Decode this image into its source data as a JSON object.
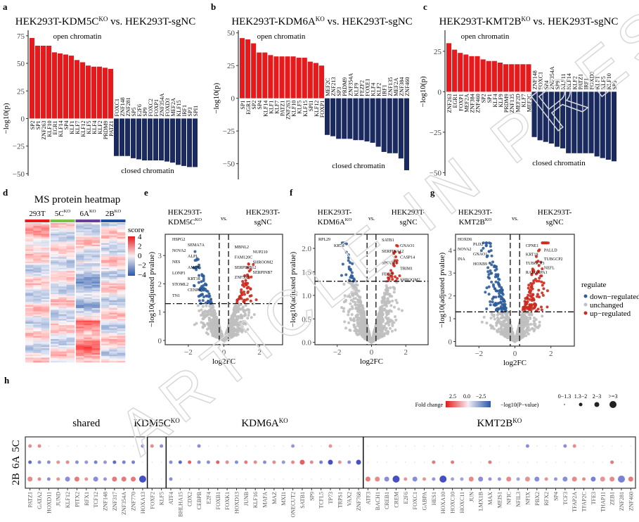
{
  "panel_letters": [
    "a",
    "b",
    "c",
    "d",
    "e",
    "f",
    "g",
    "h"
  ],
  "watermark": "ARTICLE IN PRESS",
  "colors": {
    "open": "#e41a1c",
    "closed": "#1b2a5e",
    "down": "#2f5d9a",
    "up": "#cc2a1e",
    "unchanged": "#bfbfbf",
    "heat_low": "#2a56a8",
    "heat_high": "#e41a1c"
  },
  "chart_data": [
    {
      "id": "a",
      "type": "bar",
      "title": "HEK293T-KDM5C",
      "title_sup": "KO",
      "title_rest": " vs. HEK293T-sgNC",
      "ylabel": "−log10(p)",
      "open_label": "open chromatin",
      "closed_label": "closed chromatin",
      "ylim": [
        -52,
        80
      ],
      "yticks": [
        -50,
        -25,
        0,
        25,
        50,
        75
      ],
      "open": {
        "categories": [
          "SP2",
          "SP1",
          "ZNF263",
          "KLF10",
          "EGR1",
          "KLF14",
          "SP4",
          "KLF1",
          "KLF7",
          "KLF12",
          "KLF5",
          "KLF4",
          "KLF2",
          "PRDM9",
          "PATZ1"
        ],
        "values": [
          73,
          66,
          66,
          66,
          60,
          59,
          58,
          57,
          53,
          51,
          48,
          47,
          47,
          46,
          45
        ]
      },
      "closed": {
        "categories": [
          "FOXC1",
          "ZNF148",
          "ZNF281",
          "SP5",
          "E2F6",
          "SP9",
          "FOXC2",
          "FOXP1",
          "ZNF354A",
          "FOXD3",
          "MEF2A",
          "KLF15",
          "IRF1",
          "SP3",
          "SPI1"
        ],
        "values": [
          -34,
          -34,
          -34,
          -36,
          -37,
          -38,
          -38,
          -38,
          -38,
          -39,
          -40,
          -42,
          -43,
          -44,
          -44
        ]
      }
    },
    {
      "id": "b",
      "type": "bar",
      "title": "HEK293T-KDM6A",
      "title_sup": "KO",
      "title_rest": " vs. HEK293T-sgNC",
      "ylabel": "−log10(p)",
      "open_label": "open chromatin",
      "closed_label": "closed chromatin",
      "ylim": [
        -62,
        52
      ],
      "yticks": [
        -50,
        -25,
        0,
        25,
        50
      ],
      "open": {
        "categories": [
          "SP1",
          "EGR1",
          "SP2",
          "SP4",
          "KLF14",
          "KLF1",
          "KLF7",
          "PATZ1",
          "ZNF263",
          "KLF10",
          "KLF5",
          "KLF15",
          "SPI1",
          "KLF12",
          "FOXP1"
        ],
        "values": [
          46,
          45,
          42,
          35,
          35,
          33,
          32,
          32,
          32,
          32,
          31,
          31,
          28,
          27,
          25
        ]
      },
      "closed": {
        "categories": [
          "MEF2C",
          "ZNF213",
          "SP3",
          "PRDM9",
          "ZNF354A",
          "KLF9",
          "FEZF2",
          "FOXE1",
          "KLF4",
          "KLF2",
          "IRF1",
          "ZNF135",
          "MEF2A",
          "ZNF384",
          "ZNF460"
        ],
        "values": [
          -28,
          -29,
          -31,
          -31,
          -31,
          -32,
          -32,
          -33,
          -34,
          -37,
          -41,
          -42,
          -42,
          -46,
          -55
        ]
      }
    },
    {
      "id": "c",
      "type": "bar",
      "title": "HEK293T-KMT2B",
      "title_sup": "KO",
      "title_rest": " vs. HEK293T-sgNC",
      "ylabel": "−log10(p)",
      "open_label": "open chromatin",
      "closed_label": "closed chromatin",
      "ylim": [
        -52,
        38
      ],
      "yticks": [
        -50,
        -25,
        0,
        25
      ],
      "open": {
        "categories": [
          "ZNF263",
          "EGR1",
          "FOXP1",
          "MEF2A",
          "ZNF384",
          "ZNF460",
          "SP2",
          "SP1",
          "KLF4",
          "KLF9",
          "PRDM9",
          "ZNF135",
          "MEF2D",
          "KLF7",
          "MEF2C"
        ],
        "values": [
          30,
          26,
          24,
          23,
          22,
          22,
          20,
          19,
          19,
          18,
          17,
          17,
          17,
          17,
          17
        ]
      },
      "closed": {
        "categories": [
          "ZNF148",
          "FOXC1",
          "SP4",
          "ZNF354A",
          "SP9",
          "KLF11",
          "KLF14",
          "KLF2",
          "PATZ1",
          "IRF1",
          "FOXD3",
          "KLF1",
          "KLF5",
          "KLF10",
          "SP3"
        ],
        "values": [
          -28,
          -30,
          -31,
          -32,
          -34,
          -35,
          -38,
          -38,
          -38,
          -38,
          -38,
          -40,
          -41,
          -42,
          -43
        ]
      }
    },
    {
      "id": "d",
      "type": "heatmap",
      "title": "MS protein heatmap",
      "groups": [
        {
          "label": "293T",
          "sup": "",
          "color": "#e41a1c"
        },
        {
          "label": "5C",
          "sup": "KO",
          "color": "#7ac143"
        },
        {
          "label": "6A",
          "sup": "KO",
          "color": "#6a3d9a"
        },
        {
          "label": "2B",
          "sup": "KO",
          "color": "#1f4e9c"
        }
      ],
      "legend_title": "score",
      "legend_ticks": [
        4,
        2,
        0,
        -2,
        -4
      ],
      "value_range": [
        -4,
        4
      ]
    },
    {
      "id": "e",
      "type": "scatter",
      "title_left": "HEK293T-",
      "title_left2": "KDM5C",
      "title_left_sup": "KO",
      "title_vs": "vs.",
      "title_right": "HEK293T-",
      "title_right2": "sgNC",
      "xlabel": "log2FC",
      "ylabel": "−log10(adjusted pvalue)",
      "xlim": [
        -3.3,
        3.3
      ],
      "ylim": [
        -0.15,
        3.75
      ],
      "xticks": [
        -2,
        0,
        2
      ],
      "yticks": [
        0,
        1,
        2,
        3
      ],
      "fc_cut": 0.26,
      "p_cut": 1.3,
      "labels_down": [
        "HSPG2",
        "SEMA7A",
        "NOVA2",
        "ALPL",
        "NES",
        "AMOT",
        "LONP1",
        "KRT18",
        "STOML2",
        "CENPV",
        "TN1"
      ],
      "labels_up": [
        "MBNL2",
        "NUP210",
        "FAM120C",
        "SHROOM2",
        "SERPINB12",
        "SERPINB7",
        "ZNF502"
      ]
    },
    {
      "id": "f",
      "type": "scatter",
      "title_left": "HEK293T-",
      "title_left2": "KDM6A",
      "title_left_sup": "KO",
      "title_vs": "vs.",
      "title_right": "HEK293T-",
      "title_right2": "sgNC",
      "xlabel": "log2FC",
      "ylabel": "−log10(adjusted pvalue)",
      "xlim": [
        -3.3,
        3.3
      ],
      "ylim": [
        -0.05,
        2.3
      ],
      "xticks": [
        -2,
        0,
        2
      ],
      "yticks": [
        0.0,
        0.5,
        1.0,
        1.5,
        2.0
      ],
      "fc_cut": 0.26,
      "p_cut": 1.3,
      "labels_down": [
        "RPL29",
        "KRT8"
      ],
      "labels_up": [
        "SATB1",
        "GNAO1",
        "SERPINA12",
        "CASP14",
        "SPOUT1",
        "TRIM1",
        "FECH",
        "SHROOM2"
      ]
    },
    {
      "id": "g",
      "type": "scatter",
      "title_left": "HEK293T-",
      "title_left2": "KMT2B",
      "title_left_sup": "KO",
      "title_vs": "vs.",
      "title_right": "HEK293T-",
      "title_right2": "sgNC",
      "xlabel": "log2FC",
      "ylabel": "−log10(adjusted pvalue)",
      "xlim": [
        -3.3,
        3.3
      ],
      "ylim": [
        -0.2,
        4.7
      ],
      "xticks": [
        -2,
        0,
        2
      ],
      "yticks": [
        0,
        1,
        2,
        3,
        4
      ],
      "fc_cut": 0.26,
      "p_cut": 1.3,
      "labels_down": [
        "HOXD6",
        "PLD2",
        "NOVA2",
        "GNAO1",
        "INA",
        "HOXB9"
      ],
      "labels_up": [
        "CPNE1",
        "PALLD",
        "KRT18",
        "TUBGCP2",
        "TUBGCP3",
        "NEFL",
        "RALGAPA1"
      ],
      "legend_title": "regulate",
      "legend": [
        "down−regulated",
        "unchanged",
        "up−regulated"
      ]
    },
    {
      "id": "h",
      "type": "scatter",
      "subtype": "dotplot",
      "rows": [
        "5C",
        "6A",
        "2B"
      ],
      "groups": [
        {
          "label": "shared",
          "sup": "",
          "genes": [
            "PATZ1",
            "GATA2",
            "HOXD11",
            "JUND",
            "KLF12",
            "PITX2",
            "RFX1",
            "TCF12",
            "ZNF148",
            "ZNF317",
            "ZNF354A",
            "ZNF770",
            "HOXA13"
          ]
        },
        {
          "label": "KDM5C",
          "sup": "KO",
          "genes": [
            "FOXF2",
            "KLF5"
          ]
        },
        {
          "label": "KDM6A",
          "sup": "KO",
          "genes": [
            "ATF4",
            "BHLHA15",
            "CDX2",
            "CEBPB",
            "E2F4",
            "FOXB1",
            "FOXK1",
            "HOXD13",
            "JUNB",
            "KLF16",
            "MAFA",
            "MAZ",
            "MXI1",
            "ONECUT2",
            "SATB1",
            "SP9",
            "TCFL5",
            "TP73",
            "TRPS1",
            "VAX2",
            "ZNF768"
          ]
        },
        {
          "label": "KMT2B",
          "sup": "KO",
          "genes": [
            "ATF3",
            "BACH1",
            "CREB1",
            "CREM",
            "E2F6",
            "FOXC1",
            "GABPA",
            "HES1",
            "HOXA10",
            "HOXC10",
            "HOXC11",
            "JUN",
            "LMX1B",
            "MAX",
            "MEIS1",
            "NFIC",
            "NFIL3",
            "NFIX",
            "PBX2",
            "RFX2",
            "SP4",
            "TCF3",
            "TFAP2A",
            "TFAP2C",
            "TFE3",
            "THAP11",
            "ZEB1",
            "ZNF281",
            "ZNF460"
          ]
        }
      ],
      "fold_change": {
        "5C": [
          1.2,
          1.2,
          0,
          0,
          0,
          0,
          0,
          0,
          0,
          0,
          0,
          0,
          -1.2,
          1.2,
          -1.2,
          0,
          0,
          0,
          -1.2,
          0,
          0,
          0,
          0,
          0,
          0,
          0,
          0,
          0,
          -1.0,
          0,
          0,
          0,
          1.0,
          0,
          0,
          0,
          0,
          0,
          0,
          0,
          0,
          0,
          0,
          0,
          0,
          0,
          0,
          0,
          0,
          0,
          0,
          0,
          0,
          -1.2,
          0,
          0,
          0,
          -1.2,
          1.2,
          0,
          0,
          0,
          0,
          0,
          0
        ],
        "6A": [
          -2,
          -1.2,
          -1.2,
          1.0,
          1.2,
          -1.2,
          -1.0,
          -1.5,
          -1.0,
          -2,
          -1.5,
          -1.5,
          0,
          0,
          0,
          -1.2,
          -2,
          2,
          -1.2,
          -1.2,
          2,
          1.2,
          -1.2,
          1.5,
          1.2,
          -1.2,
          1.2,
          -1.0,
          1.2,
          2,
          1.2,
          -1.5,
          -2.5,
          1.0,
          -1.2,
          -2.5,
          0,
          0,
          0,
          0,
          0,
          0,
          0,
          1.5,
          0,
          1.5,
          0,
          0,
          0,
          1.5,
          0,
          0,
          0,
          0,
          0,
          0,
          0,
          0,
          0,
          0,
          0,
          0,
          1.5,
          0,
          0
        ],
        "2B": [
          1.2,
          1.2,
          -1.2,
          1.0,
          -1.2,
          1.5,
          1.0,
          -1.2,
          -1.0,
          1.5,
          1.5,
          1.5,
          -2.5,
          0,
          0,
          -1.2,
          0,
          0,
          0,
          0,
          0,
          0,
          0,
          0,
          0,
          0,
          0,
          0,
          0,
          0,
          0,
          0,
          0,
          0,
          0,
          0,
          1.5,
          1.2,
          -1.2,
          -2.5,
          1.0,
          -1.2,
          1.0,
          -1.0,
          -2.5,
          -0.8,
          -0.8,
          1.2,
          -1.2,
          -1.0,
          -1.0,
          1.2,
          -0.8,
          1.0,
          -1.2,
          1.0,
          -1.0,
          -1.2,
          1.2,
          1.2,
          -1.5,
          1.0,
          1.2,
          -1.5,
          1.5
        ]
      },
      "significance_level": {
        "5C": [
          1,
          1,
          0,
          0,
          0,
          0,
          0,
          0,
          0,
          0,
          0,
          0,
          1,
          1,
          1,
          0,
          0,
          0,
          1,
          0,
          0,
          0,
          0,
          0,
          0,
          0,
          0,
          0,
          1,
          0,
          0,
          0,
          1,
          0,
          0,
          0,
          0,
          0,
          0,
          0,
          0,
          0,
          0,
          0,
          0,
          0,
          0,
          0,
          0,
          0,
          0,
          0,
          0,
          1,
          0,
          0,
          0,
          1,
          1,
          0,
          0,
          0,
          0,
          0,
          0
        ],
        "6A": [
          1,
          1,
          1,
          1,
          1,
          1,
          1,
          1,
          1,
          1,
          1,
          1,
          0,
          0,
          0,
          1,
          1,
          1,
          1,
          1,
          1,
          1,
          1,
          1,
          1,
          1,
          1,
          1,
          1,
          2,
          1,
          1,
          2,
          1,
          1,
          2,
          0,
          0,
          0,
          0,
          0,
          0,
          0,
          1,
          0,
          1,
          0,
          0,
          0,
          1,
          0,
          0,
          0,
          0,
          0,
          0,
          0,
          0,
          0,
          0,
          0,
          0,
          1,
          0,
          0
        ],
        "2B": [
          2,
          1,
          1,
          1,
          2,
          2,
          1,
          2,
          1,
          2,
          2,
          2,
          3,
          0,
          0,
          1,
          0,
          0,
          0,
          0,
          0,
          0,
          0,
          0,
          0,
          0,
          0,
          0,
          0,
          0,
          0,
          0,
          0,
          0,
          0,
          0,
          2,
          2,
          2,
          3,
          1,
          2,
          1,
          1,
          3,
          1,
          1,
          2,
          2,
          1,
          1,
          2,
          1,
          2,
          2,
          1,
          1,
          2,
          2,
          1,
          2,
          2,
          2,
          3,
          2
        ]
      },
      "legend_fc_title": "Fold change",
      "legend_fc_ticks": [
        "2.5",
        "0.0",
        "−2.5"
      ],
      "legend_p_title": "−log10(P−value)",
      "legend_p_levels": [
        "0−1.3",
        "1.3−2",
        "2−3",
        ">=3"
      ]
    }
  ]
}
